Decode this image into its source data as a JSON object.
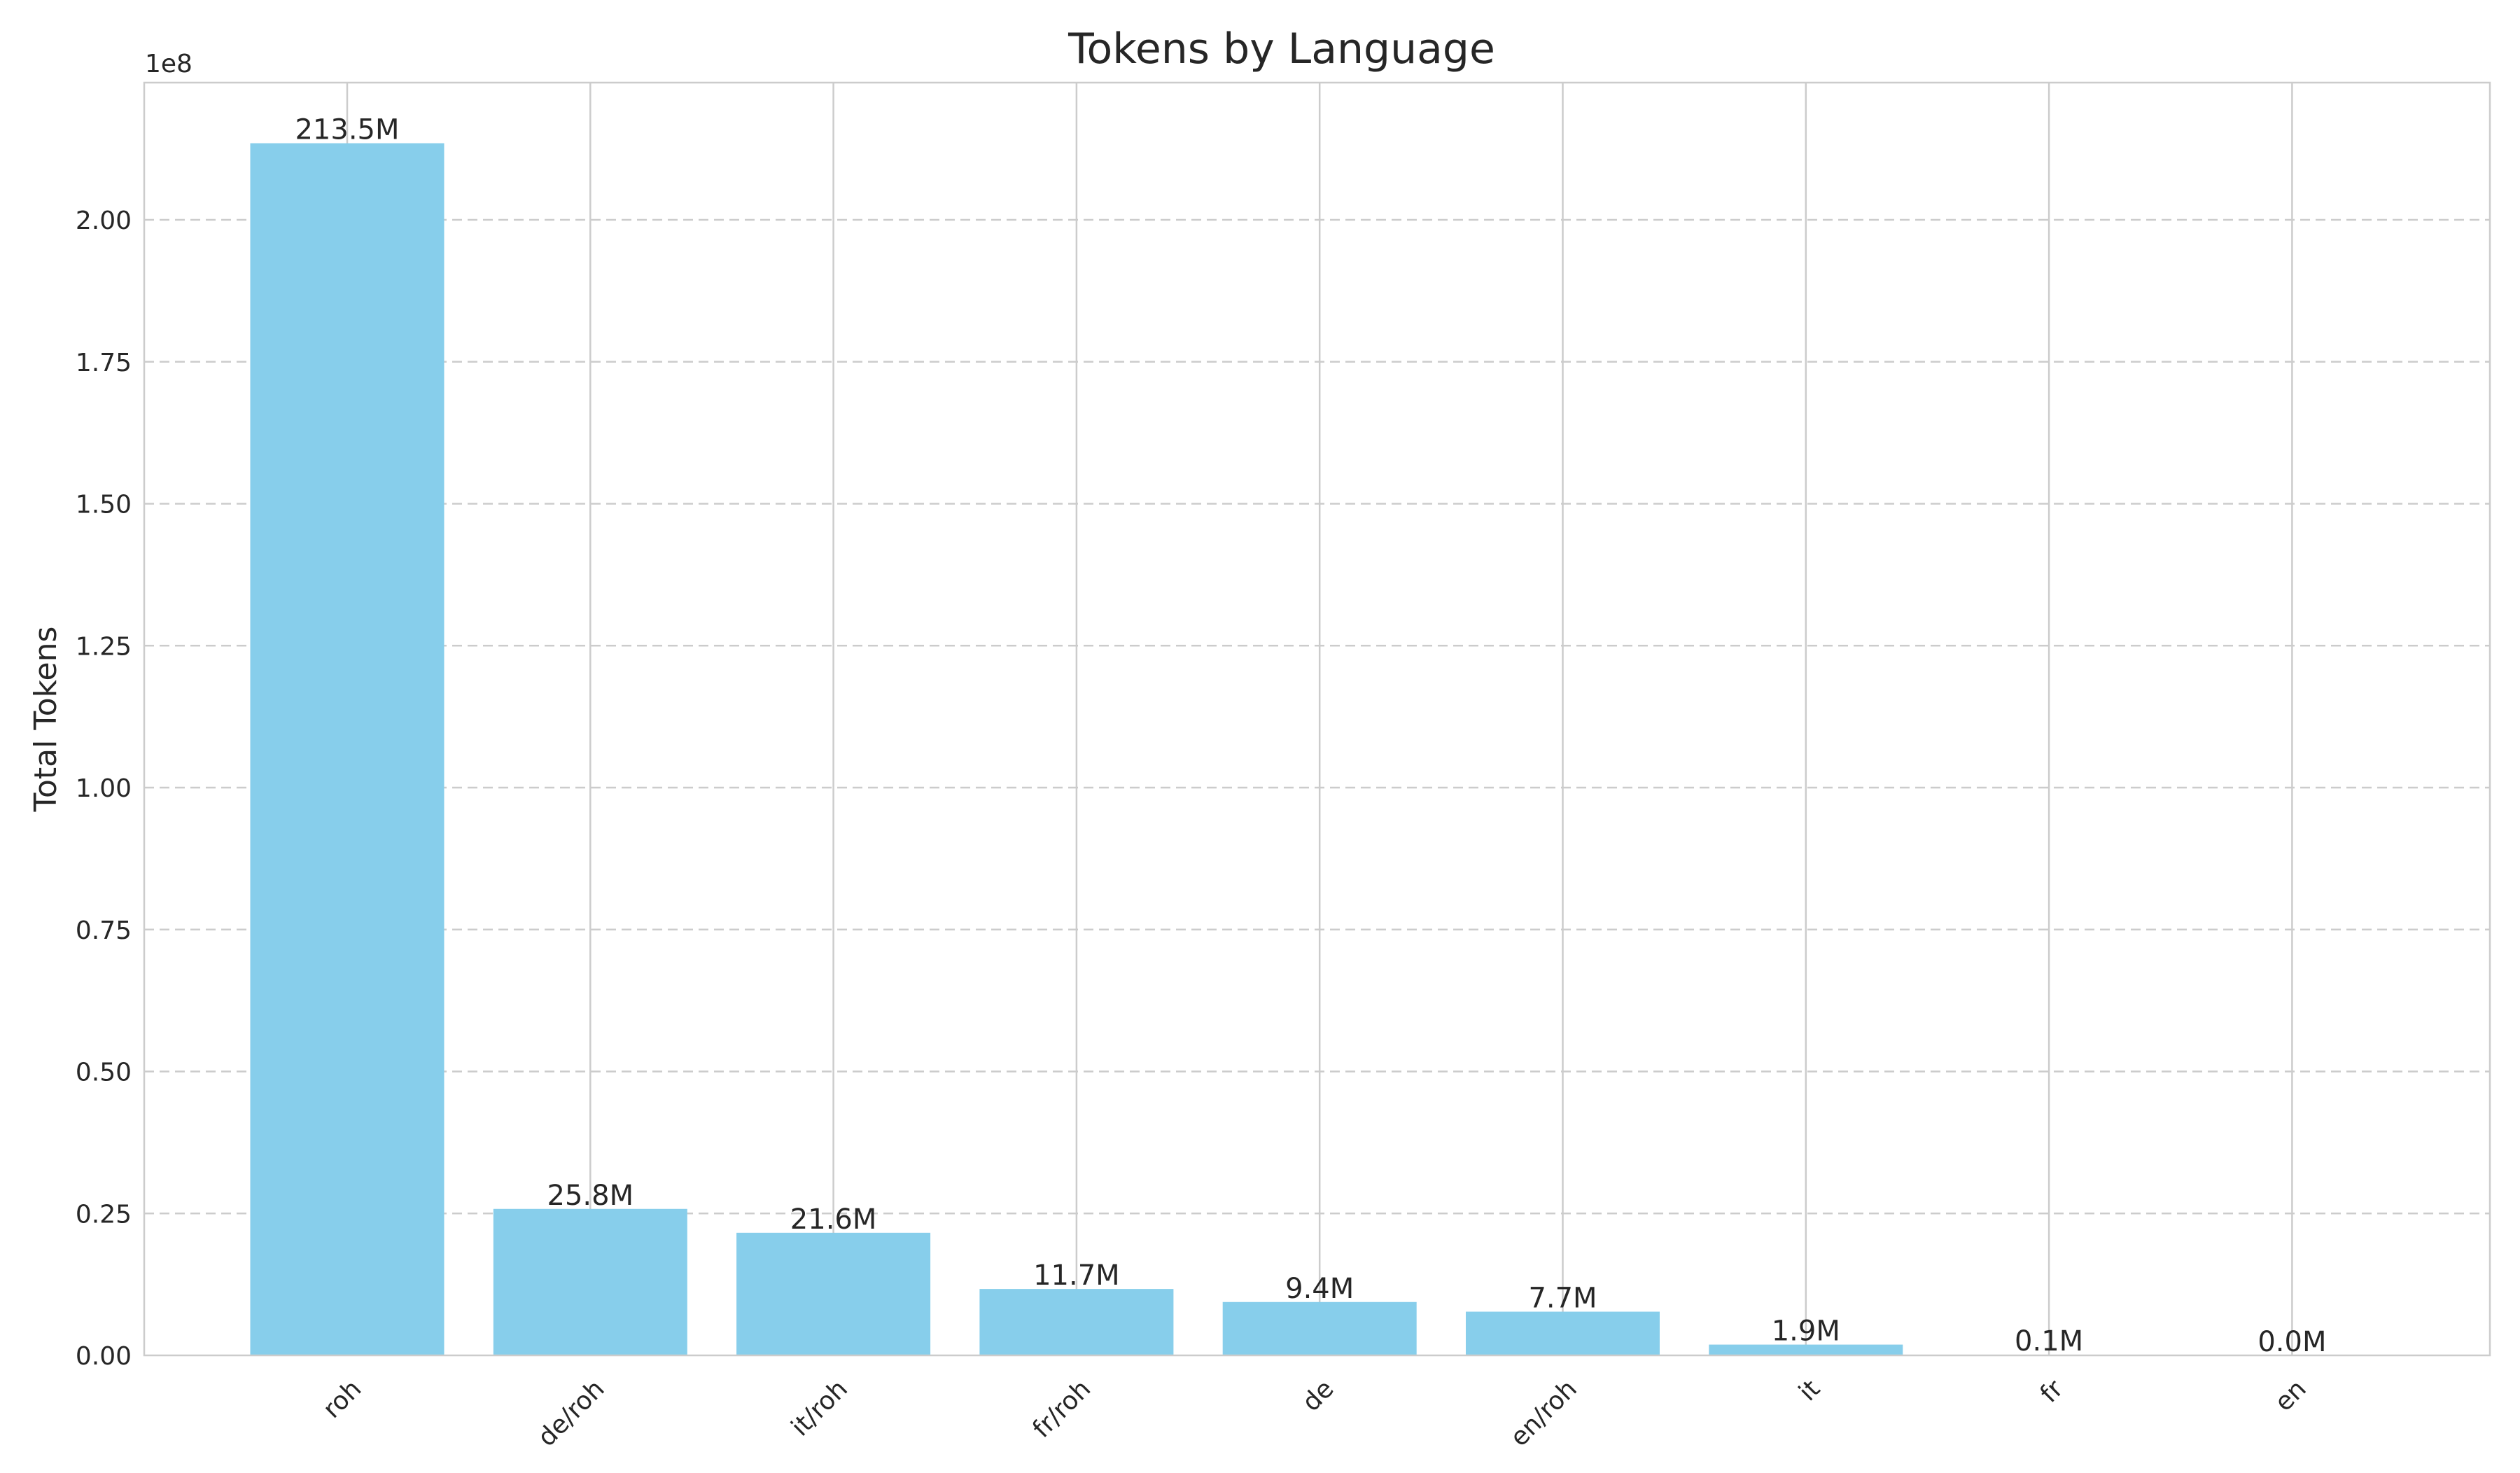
{
  "chart_data": {
    "type": "bar",
    "title": "Tokens by Language",
    "xlabel": "",
    "ylabel": "Total Tokens",
    "y_scale_offset_label": "1e8",
    "categories": [
      "roh",
      "de/roh",
      "it/roh",
      "fr/roh",
      "de",
      "en/roh",
      "it",
      "fr",
      "en"
    ],
    "values": [
      213500000,
      25800000,
      21600000,
      11700000,
      9400000,
      7700000,
      1900000,
      100000,
      0
    ],
    "data_labels": [
      "213.5M",
      "25.8M",
      "21.6M",
      "11.7M",
      "9.4M",
      "7.7M",
      "1.9M",
      "0.1M",
      "0.0M"
    ],
    "ylim": [
      0,
      224175000
    ],
    "y_ticks": [
      0,
      25000000,
      50000000,
      75000000,
      100000000,
      125000000,
      150000000,
      175000000,
      200000000
    ],
    "y_tick_labels": [
      "0.00",
      "0.25",
      "0.50",
      "0.75",
      "1.00",
      "1.25",
      "1.50",
      "1.75",
      "2.00"
    ],
    "bar_color": "#87ceeb",
    "grid": true,
    "legend": "none"
  }
}
